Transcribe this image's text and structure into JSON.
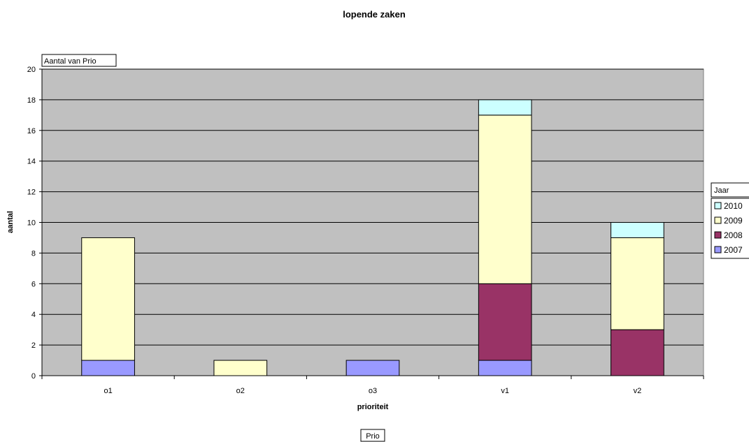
{
  "chart_data": {
    "type": "bar",
    "stacked": true,
    "title": "lopende zaken",
    "xlabel": "prioriteit",
    "ylabel": "aantal",
    "ylim": [
      0,
      20
    ],
    "yticks": [
      0,
      2,
      4,
      6,
      8,
      10,
      12,
      14,
      16,
      18,
      20
    ],
    "grid": true,
    "categories": [
      "o1",
      "o2",
      "o3",
      "v1",
      "v2"
    ],
    "series": [
      {
        "name": "2007",
        "color": "#9999ff",
        "values": [
          1,
          0,
          1,
          1,
          0
        ]
      },
      {
        "name": "2008",
        "color": "#993366",
        "values": [
          0,
          0,
          0,
          5,
          3
        ]
      },
      {
        "name": "2009",
        "color": "#ffffcc",
        "values": [
          8,
          1,
          0,
          11,
          6
        ]
      },
      {
        "name": "2010",
        "color": "#ccffff",
        "values": [
          0,
          0,
          0,
          1,
          1
        ]
      }
    ],
    "legend": {
      "title": "Jaar",
      "position": "right",
      "order": [
        "2010",
        "2009",
        "2008",
        "2007"
      ]
    },
    "pivot_labels": {
      "data_field": "Aantal van Prio",
      "row_field": "Prio"
    },
    "plot_background": "#c0c0c0"
  }
}
